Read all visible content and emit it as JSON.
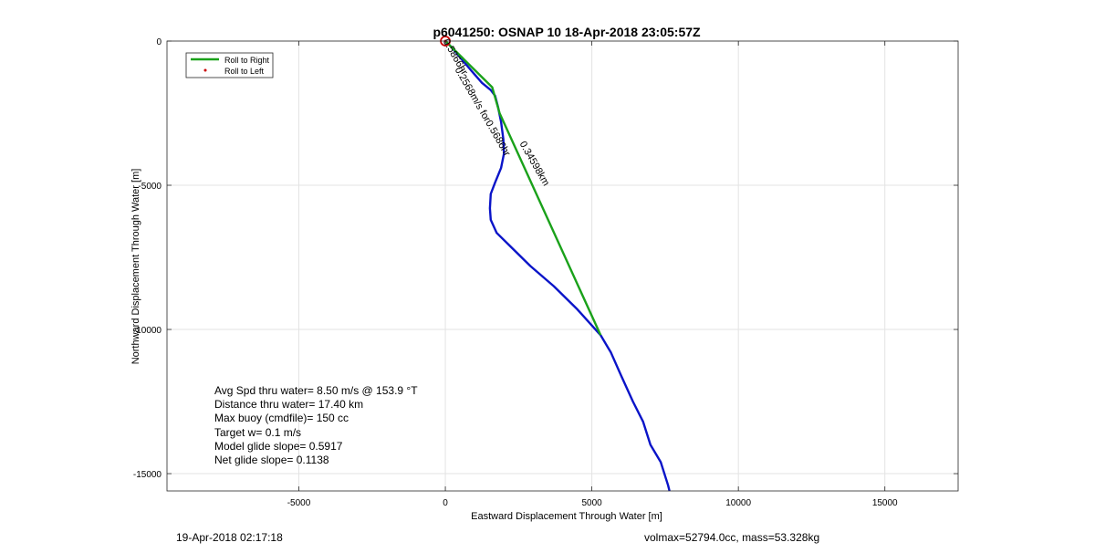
{
  "chart_data": {
    "type": "line",
    "title": "p6041250: OSNAP 10 18-Apr-2018 23:05:57Z",
    "xlabel": "Eastward Displacement Through Water [m]",
    "ylabel": "Northward Displacement Through Water [m]",
    "xlim": [
      -9500,
      17500
    ],
    "ylim": [
      -15600,
      0
    ],
    "xticks": [
      -5000,
      0,
      5000,
      10000,
      15000
    ],
    "xtick_labels": [
      "-5000",
      "0",
      "5000",
      "10000",
      "15000"
    ],
    "yticks": [
      0,
      -5000,
      -10000,
      -15000
    ],
    "ytick_labels": [
      "0",
      "-5000",
      "-10000",
      "-15000"
    ],
    "grid": true,
    "legend_position": "top-left",
    "series": [
      {
        "name": "Roll to Right",
        "color": "#1aa11a",
        "points": [
          [
            0,
            0
          ],
          [
            1600,
            -1600
          ],
          [
            1850,
            -2500
          ],
          [
            5300,
            -10200
          ]
        ]
      },
      {
        "name": "Roll to Left",
        "color": "#cc0000",
        "marker": "dot",
        "points": [
          [
            0,
            0
          ]
        ]
      },
      {
        "color": "#0a14c8",
        "points": [
          [
            0,
            0
          ],
          [
            200,
            -200
          ],
          [
            450,
            -500
          ],
          [
            700,
            -800
          ],
          [
            950,
            -1100
          ],
          [
            1250,
            -1450
          ],
          [
            1550,
            -1700
          ],
          [
            1700,
            -1900
          ],
          [
            1800,
            -2300
          ],
          [
            1900,
            -2800
          ],
          [
            1980,
            -3400
          ],
          [
            2000,
            -3900
          ],
          [
            1900,
            -4400
          ],
          [
            1700,
            -4900
          ],
          [
            1550,
            -5300
          ],
          [
            1520,
            -5800
          ],
          [
            1550,
            -6200
          ],
          [
            1750,
            -6650
          ],
          [
            2200,
            -7100
          ],
          [
            2900,
            -7800
          ],
          [
            3700,
            -8500
          ],
          [
            4500,
            -9300
          ],
          [
            5300,
            -10200
          ],
          [
            5650,
            -10800
          ],
          [
            6000,
            -11600
          ],
          [
            6400,
            -12500
          ],
          [
            6750,
            -13200
          ],
          [
            7000,
            -14000
          ],
          [
            7350,
            -14600
          ],
          [
            7600,
            -15400
          ],
          [
            7650,
            -15600
          ]
        ]
      }
    ],
    "start_marker": {
      "x": 0,
      "y": 0,
      "color": "#cc0000"
    },
    "annotations": [
      {
        "text": "0.5866hr",
        "x": 250,
        "y": -600,
        "rotation": 60,
        "color": "#0a14c8"
      },
      {
        "text": "0.2568m/s for0.5686hr",
        "x": 1180,
        "y": -2500,
        "rotation": 60,
        "color": "#0a14c8"
      },
      {
        "text": "0.34598km",
        "x": 2950,
        "y": -4300,
        "rotation": 60,
        "color": "#1aa11a"
      }
    ],
    "info_lines": [
      "Avg Spd thru water=  8.50 m/s @ 153.9 °T",
      "Distance thru water= 17.40 km",
      "Max buoy (cmdfile)= 150 cc",
      "Target w= 0.1 m/s",
      "Model glide slope= 0.5917",
      "Net glide slope= 0.1138"
    ]
  },
  "footer": {
    "timestamp": "19-Apr-2018 02:17:18",
    "vol_mass": "volmax=52794.0cc, mass=53.328kg"
  }
}
